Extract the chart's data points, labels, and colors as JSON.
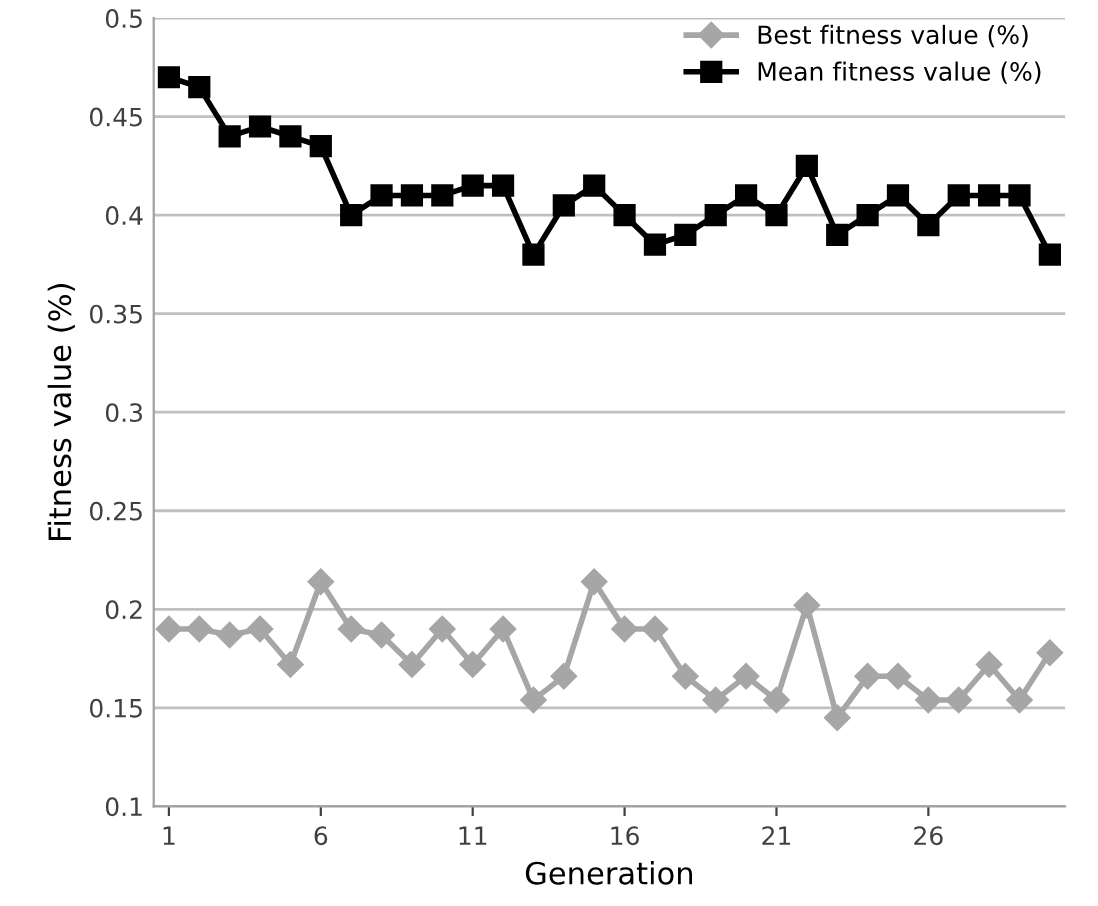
{
  "chart_data": {
    "type": "line",
    "xlabel": "Generation",
    "ylabel": "Fitness value (%)",
    "x": [
      1,
      2,
      3,
      4,
      5,
      6,
      7,
      8,
      9,
      10,
      11,
      12,
      13,
      14,
      15,
      16,
      17,
      18,
      19,
      20,
      21,
      22,
      23,
      24,
      25,
      26,
      27,
      28,
      29,
      30
    ],
    "xlim": [
      0.5,
      30.5
    ],
    "xticks": [
      1,
      6,
      11,
      16,
      21,
      26
    ],
    "ylim": [
      0.1,
      0.5
    ],
    "yticks": [
      0.1,
      0.15,
      0.2,
      0.25,
      0.3,
      0.35,
      0.4,
      0.45,
      0.5
    ],
    "grid": "y",
    "legend": "top right",
    "series": [
      {
        "name": "Best fitness value (%)",
        "color": "#a6a6a6",
        "marker": "diamond",
        "values": [
          0.19,
          0.19,
          0.187,
          0.19,
          0.172,
          0.214,
          0.19,
          0.187,
          0.172,
          0.19,
          0.172,
          0.19,
          0.154,
          0.166,
          0.214,
          0.19,
          0.19,
          0.166,
          0.154,
          0.166,
          0.154,
          0.202,
          0.145,
          0.166,
          0.166,
          0.154,
          0.154,
          0.172,
          0.154,
          0.178
        ]
      },
      {
        "name": "Mean fitness value (%)",
        "color": "#000000",
        "marker": "square",
        "values": [
          0.47,
          0.465,
          0.44,
          0.445,
          0.44,
          0.435,
          0.4,
          0.41,
          0.41,
          0.41,
          0.415,
          0.415,
          0.38,
          0.405,
          0.415,
          0.4,
          0.385,
          0.39,
          0.4,
          0.41,
          0.4,
          0.425,
          0.39,
          0.4,
          0.41,
          0.395,
          0.41,
          0.41,
          0.41,
          0.38
        ]
      }
    ]
  }
}
